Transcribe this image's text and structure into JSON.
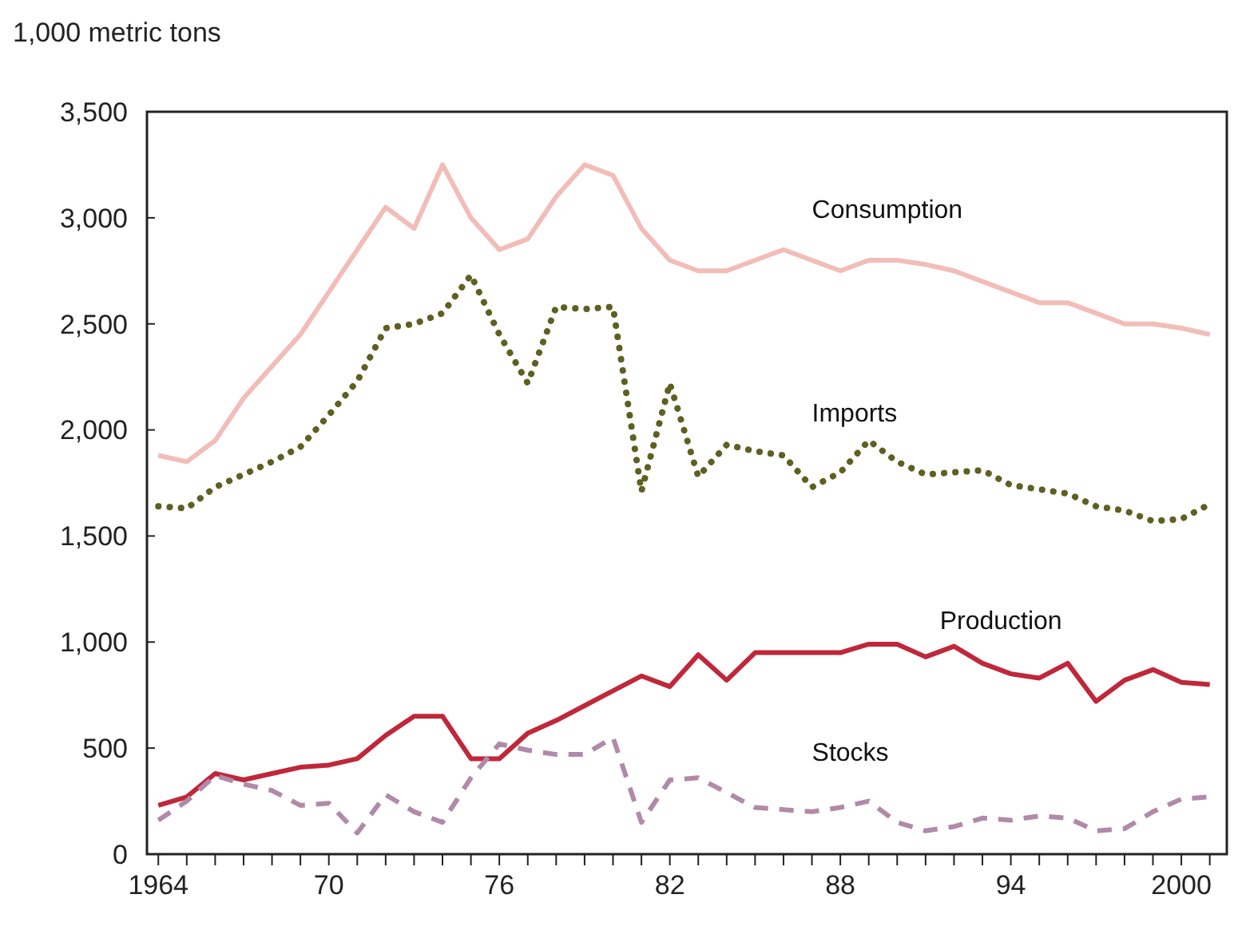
{
  "chart_data": {
    "type": "line",
    "ylabel": "1,000 metric tons",
    "x": [
      1964,
      1965,
      1966,
      1967,
      1968,
      1969,
      1970,
      1971,
      1972,
      1973,
      1974,
      1975,
      1976,
      1977,
      1978,
      1979,
      1980,
      1981,
      1982,
      1983,
      1984,
      1985,
      1986,
      1987,
      1988,
      1989,
      1990,
      1991,
      1992,
      1993,
      1994,
      1995,
      1996,
      1997,
      1998,
      1999,
      2000,
      2001
    ],
    "xlim": [
      1963.6,
      2001.6
    ],
    "xticks": [
      {
        "value": 1964,
        "label": "1964"
      },
      {
        "value": 1965,
        "label": null
      },
      {
        "value": 1966,
        "label": null
      },
      {
        "value": 1967,
        "label": null
      },
      {
        "value": 1968,
        "label": null
      },
      {
        "value": 1969,
        "label": null
      },
      {
        "value": 1970,
        "label": "70"
      },
      {
        "value": 1971,
        "label": null
      },
      {
        "value": 1972,
        "label": null
      },
      {
        "value": 1973,
        "label": null
      },
      {
        "value": 1974,
        "label": null
      },
      {
        "value": 1975,
        "label": null
      },
      {
        "value": 1976,
        "label": "76"
      },
      {
        "value": 1977,
        "label": null
      },
      {
        "value": 1978,
        "label": null
      },
      {
        "value": 1979,
        "label": null
      },
      {
        "value": 1980,
        "label": null
      },
      {
        "value": 1981,
        "label": null
      },
      {
        "value": 1982,
        "label": "82"
      },
      {
        "value": 1983,
        "label": null
      },
      {
        "value": 1984,
        "label": null
      },
      {
        "value": 1985,
        "label": null
      },
      {
        "value": 1986,
        "label": null
      },
      {
        "value": 1987,
        "label": null
      },
      {
        "value": 1988,
        "label": "88"
      },
      {
        "value": 1989,
        "label": null
      },
      {
        "value": 1990,
        "label": null
      },
      {
        "value": 1991,
        "label": null
      },
      {
        "value": 1992,
        "label": null
      },
      {
        "value": 1993,
        "label": null
      },
      {
        "value": 1994,
        "label": "94"
      },
      {
        "value": 1995,
        "label": null
      },
      {
        "value": 1996,
        "label": null
      },
      {
        "value": 1997,
        "label": null
      },
      {
        "value": 1998,
        "label": null
      },
      {
        "value": 1999,
        "label": null
      },
      {
        "value": 2000,
        "label": "2000"
      },
      {
        "value": 2001,
        "label": null
      }
    ],
    "ylim": [
      0,
      3500
    ],
    "yticks": [
      {
        "value": 0,
        "label": "0"
      },
      {
        "value": 500,
        "label": "500"
      },
      {
        "value": 1000,
        "label": "1,000"
      },
      {
        "value": 1500,
        "label": "1,500"
      },
      {
        "value": 2000,
        "label": "2,000"
      },
      {
        "value": 2500,
        "label": "2,500"
      },
      {
        "value": 3000,
        "label": "3,000"
      },
      {
        "value": 3500,
        "label": "3,500"
      }
    ],
    "grid": false,
    "legend": false,
    "series": [
      {
        "name": "Consumption",
        "color": "#f2bdb8",
        "line_style": "solid",
        "values": [
          1880,
          1850,
          1950,
          2150,
          2300,
          2450,
          2650,
          2850,
          3050,
          2950,
          3250,
          3000,
          2850,
          2900,
          3100,
          3250,
          3200,
          2950,
          2800,
          2750,
          2750,
          2800,
          2850,
          2800,
          2750,
          2800,
          2800,
          2780,
          2750,
          2700,
          2650,
          2600,
          2600,
          2550,
          2500,
          2500,
          2480,
          2450
        ]
      },
      {
        "name": "Imports",
        "color": "#5f5f22",
        "line_style": "dotted",
        "values": [
          1640,
          1630,
          1730,
          1790,
          1850,
          1920,
          2070,
          2230,
          2480,
          2500,
          2550,
          2730,
          2450,
          2220,
          2580,
          2570,
          2580,
          1710,
          2220,
          1780,
          1930,
          1900,
          1880,
          1730,
          1800,
          1950,
          1850,
          1790,
          1800,
          1810,
          1740,
          1720,
          1700,
          1640,
          1620,
          1570,
          1580,
          1650
        ]
      },
      {
        "name": "Production",
        "color": "#c0273a",
        "line_style": "solid",
        "values": [
          230,
          270,
          380,
          350,
          380,
          410,
          420,
          450,
          560,
          650,
          650,
          450,
          450,
          570,
          630,
          700,
          770,
          840,
          790,
          940,
          820,
          950,
          950,
          950,
          950,
          990,
          990,
          930,
          980,
          900,
          850,
          830,
          900,
          720,
          820,
          870,
          810,
          800
        ]
      },
      {
        "name": "Stocks",
        "color": "#b08aa8",
        "line_style": "dashed",
        "values": [
          160,
          250,
          370,
          330,
          300,
          230,
          240,
          100,
          280,
          200,
          150,
          360,
          520,
          490,
          470,
          470,
          550,
          150,
          350,
          360,
          290,
          220,
          210,
          200,
          220,
          250,
          150,
          110,
          130,
          170,
          160,
          180,
          170,
          110,
          120,
          200,
          260,
          270
        ]
      }
    ]
  }
}
